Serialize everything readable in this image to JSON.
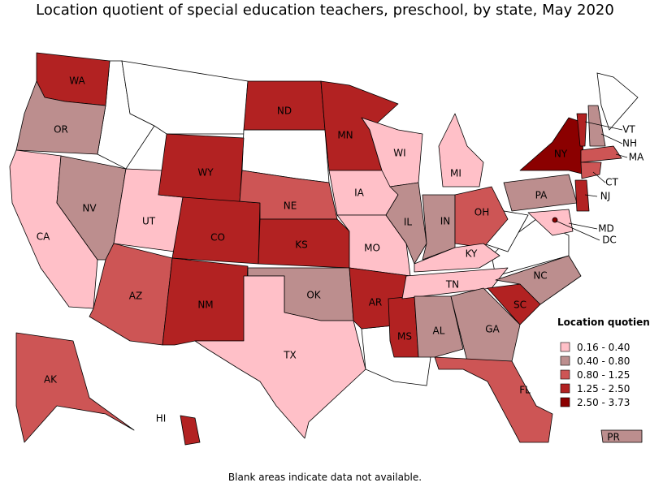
{
  "title": "Location quotient of special education teachers, preschool, by state, May 2020",
  "note": "Blank areas indicate data not available.",
  "legend": {
    "title": "Location quotient",
    "items": [
      {
        "label": "0.16 - 0.40",
        "color": "#ffc0c8"
      },
      {
        "label": "0.40 - 0.80",
        "color": "#bc8e8e"
      },
      {
        "label": "0.80 - 1.25",
        "color": "#cd5555"
      },
      {
        "label": "1.25 - 2.50",
        "color": "#b22222"
      },
      {
        "label": "2.50 - 3.73",
        "color": "#8b0000"
      }
    ]
  },
  "states": [
    {
      "label": "WA",
      "bin": 3
    },
    {
      "label": "OR",
      "bin": 1
    },
    {
      "label": "CA",
      "bin": 0
    },
    {
      "label": "NV",
      "bin": 1
    },
    {
      "label": "UT",
      "bin": 0
    },
    {
      "label": "AZ",
      "bin": 2
    },
    {
      "label": "WY",
      "bin": 3
    },
    {
      "label": "CO",
      "bin": 3
    },
    {
      "label": "NM",
      "bin": 3
    },
    {
      "label": "ND",
      "bin": 3
    },
    {
      "label": "NE",
      "bin": 2
    },
    {
      "label": "KS",
      "bin": 3
    },
    {
      "label": "OK",
      "bin": 1
    },
    {
      "label": "TX",
      "bin": 0
    },
    {
      "label": "MN",
      "bin": 3
    },
    {
      "label": "IA",
      "bin": 0
    },
    {
      "label": "MO",
      "bin": 0
    },
    {
      "label": "AR",
      "bin": 3
    },
    {
      "label": "WI",
      "bin": 0
    },
    {
      "label": "IL",
      "bin": 1
    },
    {
      "label": "MS",
      "bin": 3
    },
    {
      "label": "MI",
      "bin": 0
    },
    {
      "label": "IN",
      "bin": 1
    },
    {
      "label": "OH",
      "bin": 2
    },
    {
      "label": "KY",
      "bin": 0
    },
    {
      "label": "TN",
      "bin": 0
    },
    {
      "label": "AL",
      "bin": 1
    },
    {
      "label": "GA",
      "bin": 1
    },
    {
      "label": "FL",
      "bin": 2
    },
    {
      "label": "SC",
      "bin": 3
    },
    {
      "label": "NC",
      "bin": 1
    },
    {
      "label": "PA",
      "bin": 1
    },
    {
      "label": "NY",
      "bin": 4
    },
    {
      "label": "VT",
      "bin": 3
    },
    {
      "label": "NH",
      "bin": 1
    },
    {
      "label": "MA",
      "bin": 2
    },
    {
      "label": "CT",
      "bin": 2
    },
    {
      "label": "NJ",
      "bin": 3
    },
    {
      "label": "MD",
      "bin": 0
    },
    {
      "label": "DC",
      "bin": 4
    },
    {
      "label": "AK",
      "bin": 2
    },
    {
      "label": "HI",
      "bin": 3
    },
    {
      "label": "PR",
      "bin": 1
    }
  ]
}
